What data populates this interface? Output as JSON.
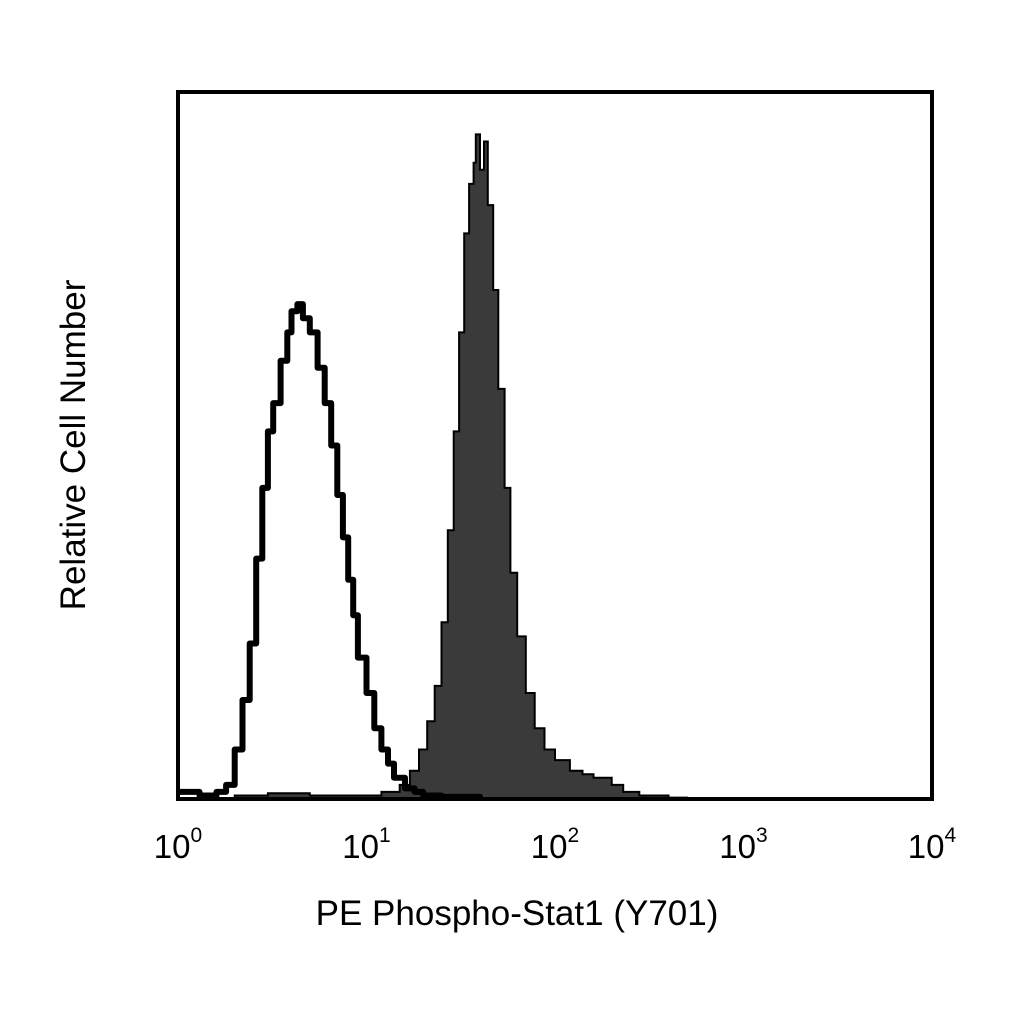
{
  "chart_data": {
    "type": "area",
    "xlabel": "PE Phospho-Stat1 (Y701)",
    "ylabel": "Relative Cell Number",
    "x_scale": "log",
    "xlim": [
      1,
      10000
    ],
    "ylim": [
      0,
      1
    ],
    "yticks_shown": false,
    "legend": "none",
    "grid": false,
    "xticks": [
      {
        "base": "10",
        "exp": "0",
        "value": 1
      },
      {
        "base": "10",
        "exp": "1",
        "value": 10
      },
      {
        "base": "10",
        "exp": "2",
        "value": 100
      },
      {
        "base": "10",
        "exp": "3",
        "value": 1000
      },
      {
        "base": "10",
        "exp": "4",
        "value": 10000
      }
    ],
    "series": [
      {
        "style": "outline",
        "color": "#000000",
        "points": [
          [
            1,
            0.01
          ],
          [
            1.3,
            0.005
          ],
          [
            1.6,
            0.01
          ],
          [
            1.8,
            0.02
          ],
          [
            2.0,
            0.07
          ],
          [
            2.2,
            0.14
          ],
          [
            2.4,
            0.22
          ],
          [
            2.6,
            0.34
          ],
          [
            2.8,
            0.44
          ],
          [
            3.0,
            0.52
          ],
          [
            3.2,
            0.56
          ],
          [
            3.5,
            0.62
          ],
          [
            3.8,
            0.66
          ],
          [
            4.0,
            0.69
          ],
          [
            4.3,
            0.7
          ],
          [
            4.6,
            0.68
          ],
          [
            5.0,
            0.66
          ],
          [
            5.5,
            0.61
          ],
          [
            6.0,
            0.56
          ],
          [
            6.5,
            0.5
          ],
          [
            7.0,
            0.43
          ],
          [
            7.5,
            0.37
          ],
          [
            8.0,
            0.31
          ],
          [
            8.5,
            0.26
          ],
          [
            9.0,
            0.2
          ],
          [
            10.0,
            0.15
          ],
          [
            11.0,
            0.1
          ],
          [
            12.0,
            0.07
          ],
          [
            13.0,
            0.05
          ],
          [
            14.0,
            0.03
          ],
          [
            16.0,
            0.015
          ],
          [
            18.0,
            0.01
          ],
          [
            20.0,
            0.005
          ],
          [
            25.0,
            0.003
          ],
          [
            40.0,
            0.0
          ]
        ]
      },
      {
        "style": "filled",
        "color": "#3a3a3a",
        "points": [
          [
            1.5,
            0.0
          ],
          [
            2.0,
            0.005
          ],
          [
            3.0,
            0.008
          ],
          [
            5.0,
            0.005
          ],
          [
            8.0,
            0.005
          ],
          [
            12.0,
            0.01
          ],
          [
            15.0,
            0.02
          ],
          [
            17.0,
            0.04
          ],
          [
            19.0,
            0.07
          ],
          [
            21.0,
            0.11
          ],
          [
            23.0,
            0.16
          ],
          [
            25.0,
            0.25
          ],
          [
            27.0,
            0.38
          ],
          [
            29.0,
            0.52
          ],
          [
            31.0,
            0.66
          ],
          [
            33.0,
            0.8
          ],
          [
            35.0,
            0.87
          ],
          [
            37.0,
            0.9
          ],
          [
            38.0,
            0.94
          ],
          [
            40.0,
            0.89
          ],
          [
            42.0,
            0.93
          ],
          [
            44.0,
            0.84
          ],
          [
            47.0,
            0.72
          ],
          [
            50.0,
            0.58
          ],
          [
            54.0,
            0.44
          ],
          [
            58.0,
            0.32
          ],
          [
            63.0,
            0.23
          ],
          [
            70.0,
            0.15
          ],
          [
            78.0,
            0.1
          ],
          [
            88.0,
            0.07
          ],
          [
            100.0,
            0.055
          ],
          [
            120.0,
            0.04
          ],
          [
            140.0,
            0.035
          ],
          [
            160.0,
            0.03
          ],
          [
            180.0,
            0.03
          ],
          [
            200.0,
            0.02
          ],
          [
            230.0,
            0.01
          ],
          [
            280.0,
            0.005
          ],
          [
            400.0,
            0.002
          ],
          [
            500.0,
            0.0
          ]
        ]
      }
    ]
  }
}
